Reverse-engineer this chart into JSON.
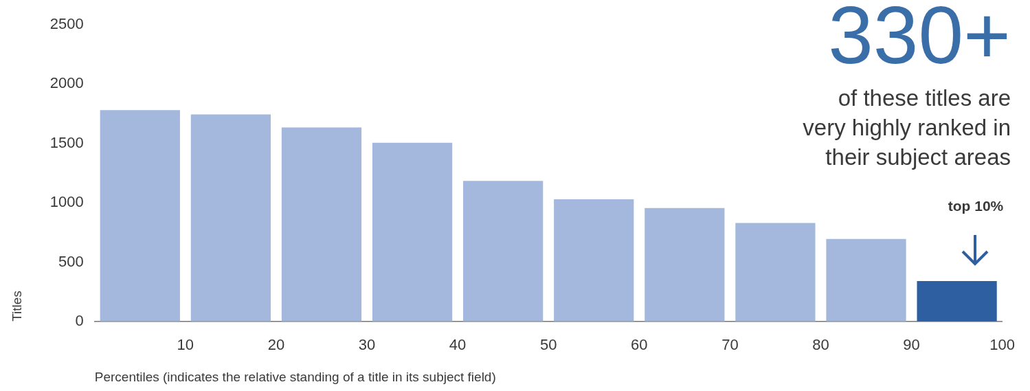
{
  "chart_data": {
    "type": "histogram",
    "xlabel": "Percentiles (indicates the relative standing of a title in its subject field)",
    "ylabel": "Titles",
    "bins": [
      0,
      10,
      20,
      30,
      40,
      50,
      60,
      70,
      80,
      90,
      100
    ],
    "values": [
      1780,
      1745,
      1635,
      1505,
      1185,
      1030,
      955,
      830,
      695,
      340
    ],
    "colors": [
      "#a3b8dc",
      "#a3b8dc",
      "#a3b8dc",
      "#a3b8dc",
      "#a3b8dc",
      "#a3b8dc",
      "#a3b8dc",
      "#a3b8dc",
      "#a3b8dc",
      "#2e5fa0"
    ],
    "xlim": [
      0,
      100
    ],
    "xticks": [
      10,
      20,
      30,
      40,
      50,
      60,
      70,
      80,
      90,
      100
    ],
    "ylim": [
      0,
      2500
    ],
    "yticks": [
      0,
      500,
      1000,
      1500,
      2000,
      2500
    ],
    "grid": false,
    "legend": false,
    "annotations": [
      "330+",
      "of these titles are very highly ranked in their subject areas",
      "top 10%"
    ]
  }
}
